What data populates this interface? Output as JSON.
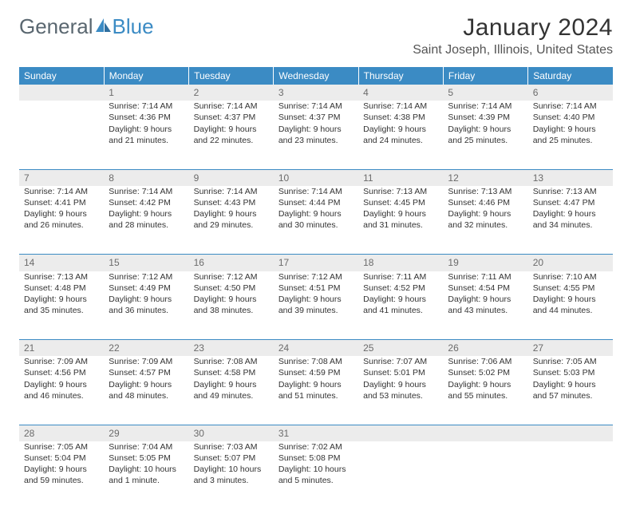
{
  "brand": {
    "part1": "General",
    "part2": "Blue"
  },
  "title": "January 2024",
  "location": "Saint Joseph, Illinois, United States",
  "colors": {
    "header_bg": "#3b8bc4",
    "header_text": "#ffffff",
    "daynum_bg": "#ececec",
    "daynum_text": "#6b6b6b",
    "body_text": "#333333",
    "rule": "#3b8bc4",
    "brand_gray": "#5a6770",
    "brand_blue": "#3b8bc4"
  },
  "day_headers": [
    "Sunday",
    "Monday",
    "Tuesday",
    "Wednesday",
    "Thursday",
    "Friday",
    "Saturday"
  ],
  "weeks": [
    {
      "nums": [
        "",
        "1",
        "2",
        "3",
        "4",
        "5",
        "6"
      ],
      "cells": [
        [],
        [
          "Sunrise: 7:14 AM",
          "Sunset: 4:36 PM",
          "Daylight: 9 hours",
          "and 21 minutes."
        ],
        [
          "Sunrise: 7:14 AM",
          "Sunset: 4:37 PM",
          "Daylight: 9 hours",
          "and 22 minutes."
        ],
        [
          "Sunrise: 7:14 AM",
          "Sunset: 4:37 PM",
          "Daylight: 9 hours",
          "and 23 minutes."
        ],
        [
          "Sunrise: 7:14 AM",
          "Sunset: 4:38 PM",
          "Daylight: 9 hours",
          "and 24 minutes."
        ],
        [
          "Sunrise: 7:14 AM",
          "Sunset: 4:39 PM",
          "Daylight: 9 hours",
          "and 25 minutes."
        ],
        [
          "Sunrise: 7:14 AM",
          "Sunset: 4:40 PM",
          "Daylight: 9 hours",
          "and 25 minutes."
        ]
      ]
    },
    {
      "nums": [
        "7",
        "8",
        "9",
        "10",
        "11",
        "12",
        "13"
      ],
      "cells": [
        [
          "Sunrise: 7:14 AM",
          "Sunset: 4:41 PM",
          "Daylight: 9 hours",
          "and 26 minutes."
        ],
        [
          "Sunrise: 7:14 AM",
          "Sunset: 4:42 PM",
          "Daylight: 9 hours",
          "and 28 minutes."
        ],
        [
          "Sunrise: 7:14 AM",
          "Sunset: 4:43 PM",
          "Daylight: 9 hours",
          "and 29 minutes."
        ],
        [
          "Sunrise: 7:14 AM",
          "Sunset: 4:44 PM",
          "Daylight: 9 hours",
          "and 30 minutes."
        ],
        [
          "Sunrise: 7:13 AM",
          "Sunset: 4:45 PM",
          "Daylight: 9 hours",
          "and 31 minutes."
        ],
        [
          "Sunrise: 7:13 AM",
          "Sunset: 4:46 PM",
          "Daylight: 9 hours",
          "and 32 minutes."
        ],
        [
          "Sunrise: 7:13 AM",
          "Sunset: 4:47 PM",
          "Daylight: 9 hours",
          "and 34 minutes."
        ]
      ]
    },
    {
      "nums": [
        "14",
        "15",
        "16",
        "17",
        "18",
        "19",
        "20"
      ],
      "cells": [
        [
          "Sunrise: 7:13 AM",
          "Sunset: 4:48 PM",
          "Daylight: 9 hours",
          "and 35 minutes."
        ],
        [
          "Sunrise: 7:12 AM",
          "Sunset: 4:49 PM",
          "Daylight: 9 hours",
          "and 36 minutes."
        ],
        [
          "Sunrise: 7:12 AM",
          "Sunset: 4:50 PM",
          "Daylight: 9 hours",
          "and 38 minutes."
        ],
        [
          "Sunrise: 7:12 AM",
          "Sunset: 4:51 PM",
          "Daylight: 9 hours",
          "and 39 minutes."
        ],
        [
          "Sunrise: 7:11 AM",
          "Sunset: 4:52 PM",
          "Daylight: 9 hours",
          "and 41 minutes."
        ],
        [
          "Sunrise: 7:11 AM",
          "Sunset: 4:54 PM",
          "Daylight: 9 hours",
          "and 43 minutes."
        ],
        [
          "Sunrise: 7:10 AM",
          "Sunset: 4:55 PM",
          "Daylight: 9 hours",
          "and 44 minutes."
        ]
      ]
    },
    {
      "nums": [
        "21",
        "22",
        "23",
        "24",
        "25",
        "26",
        "27"
      ],
      "cells": [
        [
          "Sunrise: 7:09 AM",
          "Sunset: 4:56 PM",
          "Daylight: 9 hours",
          "and 46 minutes."
        ],
        [
          "Sunrise: 7:09 AM",
          "Sunset: 4:57 PM",
          "Daylight: 9 hours",
          "and 48 minutes."
        ],
        [
          "Sunrise: 7:08 AM",
          "Sunset: 4:58 PM",
          "Daylight: 9 hours",
          "and 49 minutes."
        ],
        [
          "Sunrise: 7:08 AM",
          "Sunset: 4:59 PM",
          "Daylight: 9 hours",
          "and 51 minutes."
        ],
        [
          "Sunrise: 7:07 AM",
          "Sunset: 5:01 PM",
          "Daylight: 9 hours",
          "and 53 minutes."
        ],
        [
          "Sunrise: 7:06 AM",
          "Sunset: 5:02 PM",
          "Daylight: 9 hours",
          "and 55 minutes."
        ],
        [
          "Sunrise: 7:05 AM",
          "Sunset: 5:03 PM",
          "Daylight: 9 hours",
          "and 57 minutes."
        ]
      ]
    },
    {
      "nums": [
        "28",
        "29",
        "30",
        "31",
        "",
        "",
        ""
      ],
      "cells": [
        [
          "Sunrise: 7:05 AM",
          "Sunset: 5:04 PM",
          "Daylight: 9 hours",
          "and 59 minutes."
        ],
        [
          "Sunrise: 7:04 AM",
          "Sunset: 5:05 PM",
          "Daylight: 10 hours",
          "and 1 minute."
        ],
        [
          "Sunrise: 7:03 AM",
          "Sunset: 5:07 PM",
          "Daylight: 10 hours",
          "and 3 minutes."
        ],
        [
          "Sunrise: 7:02 AM",
          "Sunset: 5:08 PM",
          "Daylight: 10 hours",
          "and 5 minutes."
        ],
        [],
        [],
        []
      ]
    }
  ]
}
